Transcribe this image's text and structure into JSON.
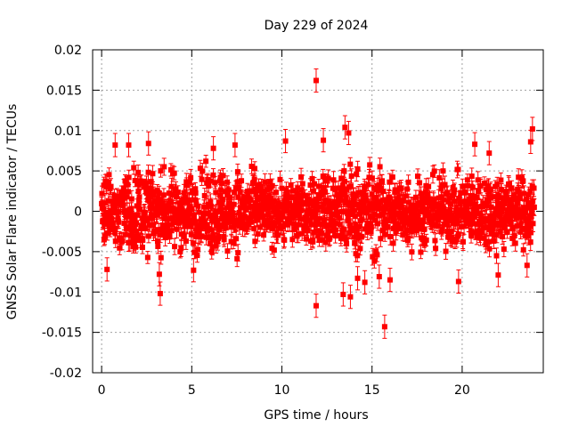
{
  "chart_data": {
    "type": "scatter",
    "title": "Day 229 of 2024",
    "xlabel": "GPS time / hours",
    "ylabel": "GNSS Solar Flare indicator / TECUs",
    "xlim": [
      -0.5,
      24.5
    ],
    "ylim": [
      -0.02,
      0.02
    ],
    "x_ticks": [
      0,
      5,
      10,
      15,
      20
    ],
    "y_ticks": [
      -0.02,
      -0.015,
      -0.01,
      -0.005,
      0,
      0.005,
      0.01,
      0.015,
      0.02
    ],
    "x_tick_labels": [
      "0",
      "5",
      "10",
      "15",
      "20"
    ],
    "y_tick_labels": [
      "-0.02",
      "-0.015",
      "-0.01",
      "-0.005",
      "0",
      "0.005",
      "0.01",
      "0.015",
      "0.02"
    ],
    "grid": true,
    "legend": "none",
    "marker": "filled-square",
    "error_bars": true,
    "color": "#ff0000",
    "sampling": "dense (~every 30 s, 0-24 h)",
    "typical_error": 0.0009,
    "band": {
      "x": [
        0,
        1,
        2,
        3,
        4,
        5,
        6,
        7,
        8,
        9,
        10,
        11,
        12,
        13,
        14,
        15,
        16,
        17,
        18,
        19,
        20,
        21,
        22,
        23,
        24
      ],
      "upper": [
        0.0045,
        0.0055,
        0.0055,
        0.005,
        0.005,
        0.005,
        0.0055,
        0.0055,
        0.005,
        0.0045,
        0.004,
        0.004,
        0.0045,
        0.006,
        0.006,
        0.0055,
        0.005,
        0.005,
        0.0045,
        0.0045,
        0.0045,
        0.005,
        0.005,
        0.0045,
        0.0045
      ],
      "lower": [
        -0.0045,
        -0.0055,
        -0.0055,
        -0.005,
        -0.005,
        -0.005,
        -0.0055,
        -0.0055,
        -0.005,
        -0.0045,
        -0.004,
        -0.004,
        -0.0045,
        -0.006,
        -0.006,
        -0.0055,
        -0.005,
        -0.005,
        -0.0045,
        -0.0045,
        -0.0045,
        -0.005,
        -0.005,
        -0.0045,
        -0.0045
      ]
    },
    "outliers": [
      {
        "x": 11.9,
        "y": 0.0162
      },
      {
        "x": 11.9,
        "y": -0.0117
      },
      {
        "x": 15.7,
        "y": -0.0143
      },
      {
        "x": 3.25,
        "y": -0.0102
      },
      {
        "x": 3.2,
        "y": -0.0078
      },
      {
        "x": 0.75,
        "y": 0.0082
      },
      {
        "x": 1.5,
        "y": 0.0082
      },
      {
        "x": 2.6,
        "y": 0.0084
      },
      {
        "x": 10.2,
        "y": 0.0087
      },
      {
        "x": 12.3,
        "y": 0.0088
      },
      {
        "x": 13.5,
        "y": 0.0104
      },
      {
        "x": 13.7,
        "y": 0.0097
      },
      {
        "x": 13.4,
        "y": -0.0103
      },
      {
        "x": 13.8,
        "y": -0.0106
      },
      {
        "x": 14.6,
        "y": -0.0088
      },
      {
        "x": 14.2,
        "y": -0.0083
      },
      {
        "x": 15.4,
        "y": -0.0081
      },
      {
        "x": 16.0,
        "y": -0.0085
      },
      {
        "x": 7.4,
        "y": 0.0082
      },
      {
        "x": 6.2,
        "y": 0.0078
      },
      {
        "x": 19.8,
        "y": -0.0087
      },
      {
        "x": 20.7,
        "y": 0.0083
      },
      {
        "x": 22.0,
        "y": -0.0079
      },
      {
        "x": 23.9,
        "y": 0.0102
      },
      {
        "x": 23.8,
        "y": 0.0086
      },
      {
        "x": 23.6,
        "y": -0.0067
      },
      {
        "x": 21.5,
        "y": 0.0072
      },
      {
        "x": 5.1,
        "y": -0.0073
      },
      {
        "x": 0.3,
        "y": -0.0072
      }
    ]
  }
}
